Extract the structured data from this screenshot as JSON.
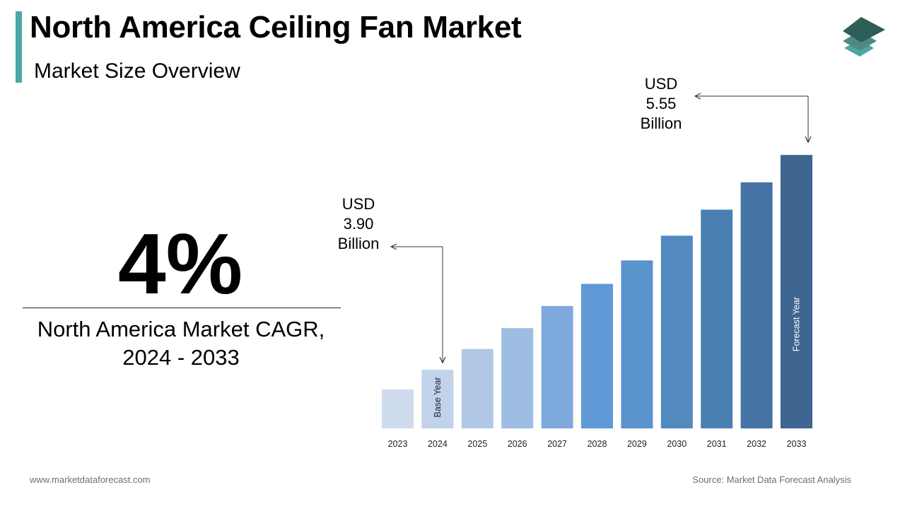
{
  "header": {
    "title": "North America Ceiling Fan Market",
    "subtitle": "Market Size Overview"
  },
  "highlight": {
    "cagr_value": "4%",
    "cagr_label_line1": "North America Market CAGR,",
    "cagr_label_line2": "2024 - 2033"
  },
  "callouts": {
    "start": {
      "line1": "USD",
      "line2": "3.90",
      "line3": "Billion"
    },
    "end": {
      "line1": "USD",
      "line2": "5.55",
      "line3": "Billion"
    }
  },
  "chart_data": {
    "type": "bar",
    "categories": [
      "2023",
      "2024",
      "2025",
      "2026",
      "2027",
      "2028",
      "2029",
      "2030",
      "2031",
      "2032",
      "2033"
    ],
    "values": [
      3.75,
      3.9,
      4.06,
      4.22,
      4.39,
      4.56,
      4.74,
      4.93,
      5.13,
      5.34,
      5.55
    ],
    "bar_labels": {
      "2024": "Base Year",
      "2033": "Forecast Year"
    },
    "bar_colors": [
      "#cfdcee",
      "#c1d3ea",
      "#b1c9e7",
      "#9ebde2",
      "#7ea9dc",
      "#5f9ad6",
      "#5a93cc",
      "#5289bf",
      "#4a7fb2",
      "#4573a3",
      "#3e6690"
    ],
    "axis_color": "#333333",
    "ylim": [
      3.45,
      5.6
    ],
    "title": "",
    "xlabel": "",
    "ylabel": ""
  },
  "footer": {
    "website": "www.marketdataforecast.com",
    "source": "Source: Market Data Forecast Analysis"
  },
  "colors": {
    "accent": "#4aa7a5",
    "logo_dark": "#2e5e58",
    "logo_mid": "#4f8a82",
    "logo_light": "#4aa7a5"
  }
}
